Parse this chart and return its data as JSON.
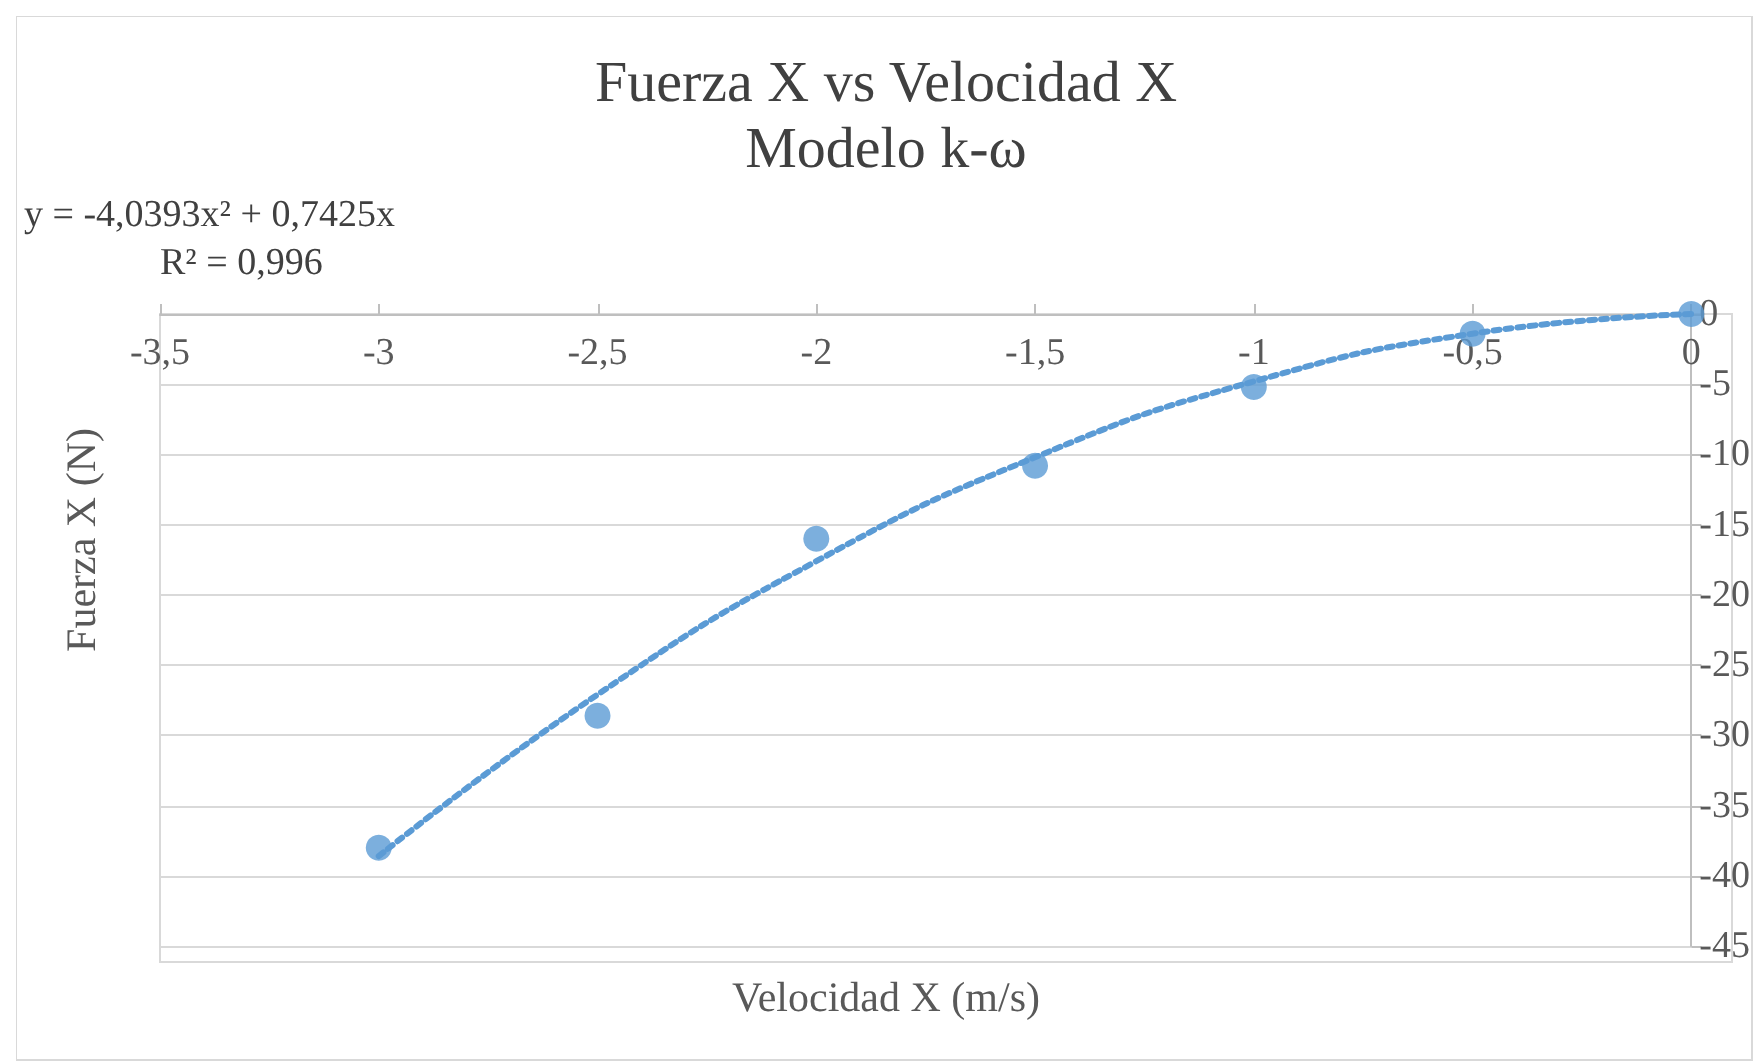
{
  "chart_data": {
    "type": "scatter",
    "title": "Fuerza X vs Velocidad X",
    "subtitle": "Modelo k-ω",
    "xlabel": "Velocidad X (m/s)",
    "ylabel": "Fuerza X (N)",
    "annotations": [
      "y = -4,0393x² + 0,7425x",
      "R² = 0,996"
    ],
    "series": [
      {
        "color": "#5b9bd5",
        "marker": "circle",
        "x": [
          -3,
          -2.5,
          -2,
          -1.5,
          -1,
          -0.5,
          0
        ],
        "values": [
          -38,
          -28.6,
          -16,
          -10.8,
          -5.2,
          -1.4,
          0
        ]
      },
      {
        "type": "line",
        "color": "#5b9bd5",
        "line_style": "dotted",
        "marker": "none",
        "x": [
          -3,
          -2.5,
          -2,
          -1.5,
          -1,
          -0.5,
          0
        ],
        "values": [
          -38.6,
          -27.1,
          -17.6,
          -10.2,
          -4.8,
          -1.4,
          0
        ]
      }
    ],
    "xlim": [
      -3.5,
      0
    ],
    "xticks": [
      {
        "value": -3.5,
        "label": "-3,5"
      },
      -3,
      {
        "value": -2.5,
        "label": "-2,5"
      },
      -2,
      {
        "value": -1.5,
        "label": "-1,5"
      },
      -1,
      {
        "value": -0.5,
        "label": "-0,5"
      },
      0
    ],
    "ylim": [
      -45,
      0
    ],
    "yticks": [
      -45,
      -40,
      -35,
      -30,
      -25,
      -20,
      -15,
      -10,
      -5,
      0
    ],
    "grid": "y"
  }
}
